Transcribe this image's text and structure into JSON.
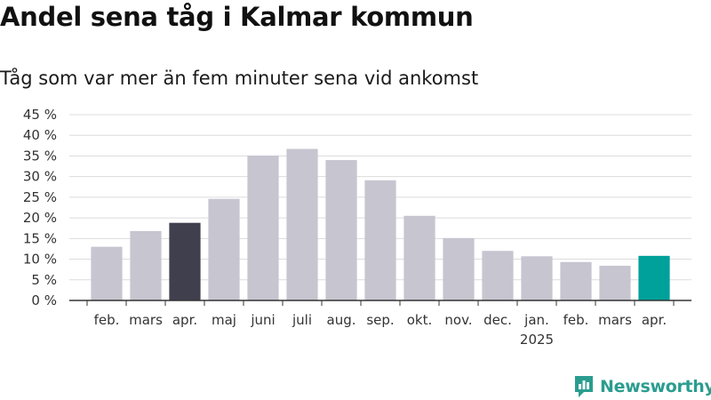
{
  "header": {
    "title": "Andel sena tåg i Kalmar kommun",
    "subtitle": "Tåg som var mer än fem minuter sena vid ankomst"
  },
  "brand": {
    "name": "Newsworthy",
    "icon": "newsworthy-logo-icon",
    "color": "#2a9d8f"
  },
  "colors": {
    "default_bar": "#c6c5d0",
    "highlight_past": "#403f4e",
    "highlight_current": "#00a19a"
  },
  "chart_data": {
    "type": "bar",
    "categories": [
      "feb.",
      "mars",
      "apr.",
      "maj",
      "juni",
      "juli",
      "aug.",
      "sep.",
      "okt.",
      "nov.",
      "dec.",
      "jan.",
      "feb.",
      "mars",
      "apr."
    ],
    "category_sublabels": [
      "",
      "",
      "",
      "",
      "",
      "",
      "",
      "",
      "",
      "",
      "",
      "2025",
      "",
      "",
      ""
    ],
    "series": [
      {
        "values": [
          13,
          16.8,
          18.8,
          24.6,
          35.1,
          36.7,
          34,
          29.1,
          20.5,
          15.1,
          12,
          10.7,
          9.3,
          8.4,
          10.8
        ]
      }
    ],
    "highlight": {
      "2": "highlight_past",
      "14": "highlight_current"
    },
    "y_ticks": [
      "0 %",
      "5 %",
      "10 %",
      "15 %",
      "20 %",
      "25 %",
      "30 %",
      "35 %",
      "40 %",
      "45 %"
    ],
    "ylim": [
      0,
      45
    ],
    "grid": true,
    "xlabel": "",
    "ylabel": ""
  }
}
